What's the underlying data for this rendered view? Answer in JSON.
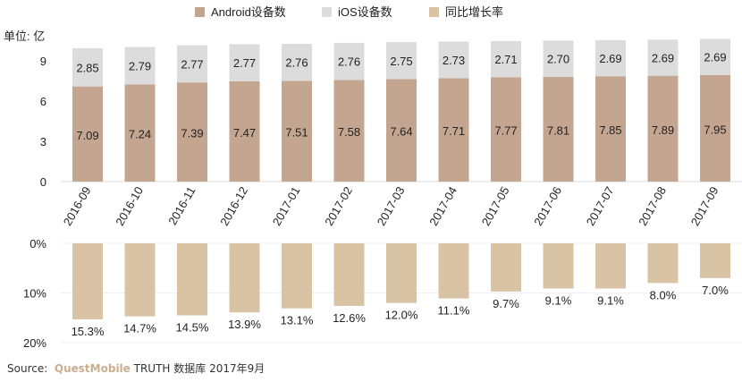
{
  "chart_data": [
    {
      "type": "bar",
      "stacked": true,
      "unit_label": "单位: 亿",
      "categories": [
        "2016-09",
        "2016-10",
        "2016-11",
        "2016-12",
        "2017-01",
        "2017-02",
        "2017-03",
        "2017-04",
        "2017-05",
        "2017-06",
        "2017-07",
        "2017-08",
        "2017-09"
      ],
      "series": [
        {
          "name": "Android设备数",
          "color": "#c4a58f",
          "values": [
            7.09,
            7.24,
            7.39,
            7.47,
            7.51,
            7.58,
            7.64,
            7.71,
            7.77,
            7.81,
            7.85,
            7.89,
            7.95
          ]
        },
        {
          "name": "iOS设备数",
          "color": "#dcdcdc",
          "values": [
            2.85,
            2.79,
            2.77,
            2.77,
            2.76,
            2.76,
            2.75,
            2.73,
            2.71,
            2.7,
            2.69,
            2.69,
            2.69
          ]
        }
      ],
      "yticks": [
        "0",
        "3",
        "6",
        "9"
      ],
      "ylim": [
        0,
        10
      ]
    },
    {
      "type": "bar",
      "inverted": true,
      "series": [
        {
          "name": "同比增长率",
          "color": "#d8c3a5",
          "values": [
            15.3,
            14.7,
            14.5,
            13.9,
            13.1,
            12.6,
            12.0,
            11.1,
            9.7,
            9.1,
            9.1,
            8.0,
            7.0
          ],
          "labels": [
            "15.3%",
            "14.7%",
            "14.5%",
            "13.9%",
            "13.1%",
            "12.6%",
            "12.0%",
            "11.1%",
            "9.7%",
            "9.1%",
            "9.1%",
            "8.0%",
            "7.0%"
          ]
        }
      ],
      "yticks": [
        "0%",
        "10%",
        "20%"
      ],
      "ylim": [
        0,
        20
      ]
    }
  ],
  "source": {
    "prefix": "Source:",
    "brand": "QuestMobile",
    "rest": "TRUTH 数据库 2017年9月"
  }
}
